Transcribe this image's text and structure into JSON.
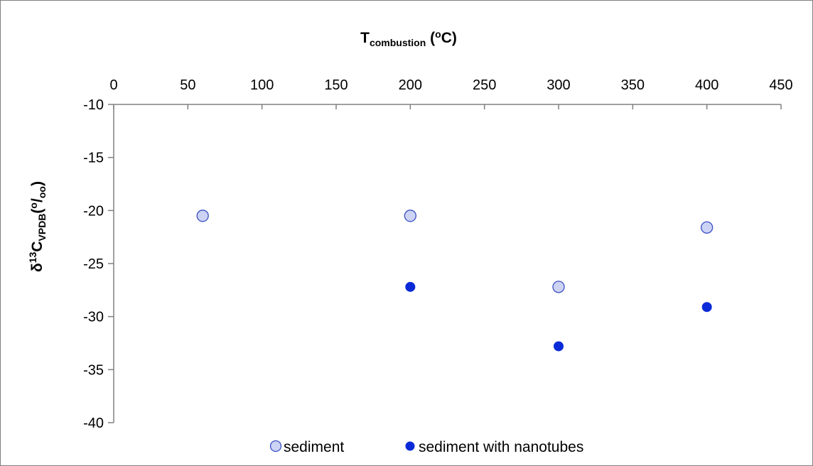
{
  "chart_data": {
    "type": "scatter",
    "title": "",
    "xlabel": {
      "main": "T",
      "sub": "combustion",
      "rest_open": " (",
      "sup": "o",
      "rest_close": "C)"
    },
    "ylabel": {
      "pre_sup": "δ",
      "sup": "13",
      "main": "C",
      "sub": "VPDB",
      "paren_open": "(",
      "unit_sup": "o",
      "unit_slash": "/",
      "unit_sub": "oo",
      "paren_close": ")"
    },
    "xlim": [
      0,
      450
    ],
    "ylim": [
      -40,
      -10
    ],
    "x_axis_position": "top",
    "x_ticks": [
      0,
      50,
      100,
      150,
      200,
      250,
      300,
      350,
      400,
      450
    ],
    "y_ticks": [
      -10,
      -15,
      -20,
      -25,
      -30,
      -35,
      -40
    ],
    "grid": false,
    "legend_position": "bottom",
    "series": [
      {
        "name": "sediment",
        "color": "#ccd3f5",
        "edge_color": "#3a4fc4",
        "points": [
          {
            "x": 60,
            "y": -20.5
          },
          {
            "x": 200,
            "y": -20.5
          },
          {
            "x": 300,
            "y": -27.2
          },
          {
            "x": 400,
            "y": -21.6
          }
        ]
      },
      {
        "name": "sediment with nanotubes",
        "color": "#0a2ad8",
        "edge_color": "#0a2ad8",
        "points": [
          {
            "x": 200,
            "y": -27.2
          },
          {
            "x": 300,
            "y": -32.8
          },
          {
            "x": 400,
            "y": -29.1
          }
        ]
      }
    ]
  }
}
